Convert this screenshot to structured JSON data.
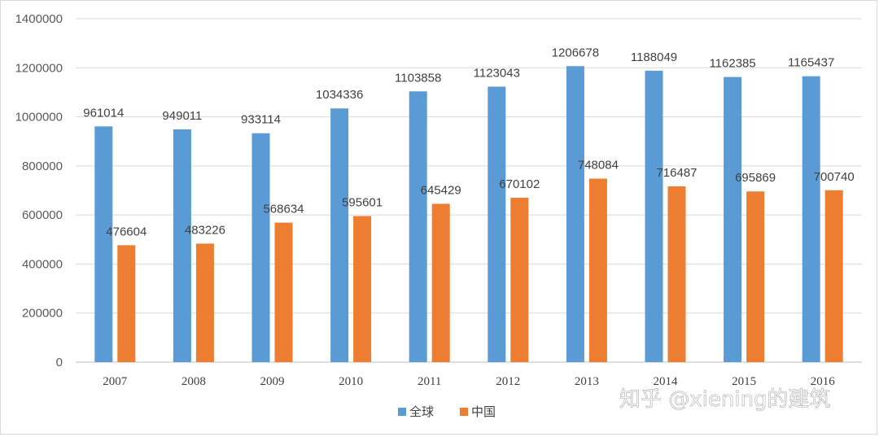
{
  "chart_data": {
    "type": "bar",
    "categories": [
      "2007",
      "2008",
      "2009",
      "2010",
      "2011",
      "2012",
      "2013",
      "2014",
      "2015",
      "2016"
    ],
    "series": [
      {
        "name": "全球",
        "color": "#5b9bd5",
        "values": [
          961014,
          949011,
          933114,
          1034336,
          1103858,
          1123043,
          1206678,
          1188049,
          1162385,
          1165437
        ]
      },
      {
        "name": "中国",
        "color": "#ed7d31",
        "values": [
          476604,
          483226,
          568634,
          595601,
          645429,
          670102,
          748084,
          716487,
          695869,
          700740
        ]
      }
    ],
    "ylim": [
      0,
      1400000
    ],
    "yticks": [
      0,
      200000,
      400000,
      600000,
      800000,
      1000000,
      1200000,
      1400000
    ],
    "grid": true,
    "legend_position": "bottom-center",
    "title": "",
    "xlabel": "",
    "ylabel": ""
  },
  "watermark": {
    "text": "知乎 @xiening的建筑"
  }
}
